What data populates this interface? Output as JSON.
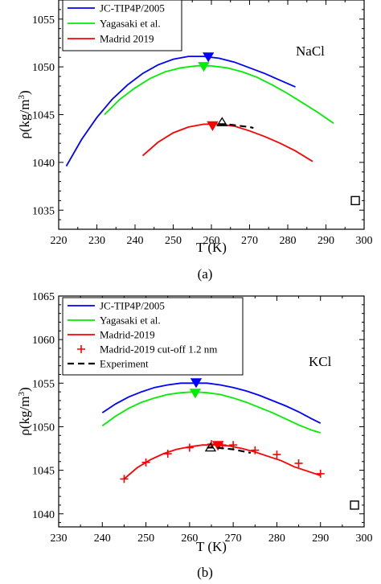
{
  "chart_data": [
    {
      "type": "line",
      "panel_label": "(a)",
      "annotation": "NaCl",
      "xlabel": "T (K)",
      "ylabel": "ρ(kg/m",
      "ylabel_sup": "3",
      "ylabel_close": ")",
      "xlim": [
        220,
        300
      ],
      "ylim": [
        1033,
        1057
      ],
      "xticks": [
        220,
        230,
        240,
        250,
        260,
        270,
        280,
        290,
        300
      ],
      "yticks": [
        1035,
        1040,
        1045,
        1050,
        1055
      ],
      "legend_position": "top-left",
      "series": [
        {
          "name": "JC-TIP4P/2005",
          "color": "#0000ff",
          "x": [
            222,
            226,
            230,
            234,
            238,
            242,
            246,
            250,
            254,
            258,
            262,
            266,
            270,
            274,
            278,
            282
          ],
          "y": [
            1039.6,
            1042.4,
            1044.7,
            1046.6,
            1048.1,
            1049.3,
            1050.2,
            1050.8,
            1051.1,
            1051.1,
            1050.9,
            1050.5,
            1049.9,
            1049.3,
            1048.6,
            1047.9
          ],
          "marker": {
            "shape": "triangle-down",
            "x": 259.2,
            "y": 1051.0
          }
        },
        {
          "name": "Yagasaki et al.",
          "color": "#00ee00",
          "x": [
            232,
            236,
            240,
            244,
            248,
            252,
            256,
            260,
            264,
            268,
            272,
            276,
            280,
            284,
            288,
            292
          ],
          "y": [
            1045.0,
            1046.6,
            1047.8,
            1048.8,
            1049.5,
            1049.9,
            1050.1,
            1050.1,
            1049.9,
            1049.5,
            1048.9,
            1048.1,
            1047.2,
            1046.2,
            1045.2,
            1044.1
          ],
          "marker": {
            "shape": "triangle-down",
            "x": 258.0,
            "y": 1050.0
          }
        },
        {
          "name": "Madrid 2019",
          "color": "#ff0000",
          "x": [
            242,
            246,
            250,
            254,
            258,
            262,
            266,
            270,
            274,
            278,
            282,
            286.5
          ],
          "y": [
            1040.7,
            1042.1,
            1043.1,
            1043.7,
            1044.0,
            1044.0,
            1043.8,
            1043.3,
            1042.7,
            1042.0,
            1041.2,
            1040.1
          ],
          "marker": {
            "shape": "triangle-down",
            "x": 260.3,
            "y": 1043.8
          }
        }
      ],
      "experiment": {
        "color": "#000000",
        "x": [
          262,
          264,
          266,
          268,
          270,
          271
        ],
        "y": [
          1044.0,
          1044.0,
          1043.9,
          1043.8,
          1043.7,
          1043.6
        ],
        "open_triangle": {
          "x": 262.8,
          "y": 1044.2
        }
      },
      "open_square": {
        "x": 297.7,
        "y": 1036.0
      }
    },
    {
      "type": "line",
      "panel_label": "(b)",
      "annotation": "KCl",
      "xlabel": "T (K)",
      "ylabel": "ρ(kg/m",
      "ylabel_sup": "3",
      "ylabel_close": ")",
      "xlim": [
        230,
        300
      ],
      "ylim": [
        1038.5,
        1065
      ],
      "xticks": [
        230,
        240,
        250,
        260,
        270,
        280,
        290,
        300
      ],
      "yticks": [
        1040,
        1045,
        1050,
        1055,
        1060,
        1065
      ],
      "legend_position": "top-left",
      "series": [
        {
          "name": "JC-TIP4P/2005",
          "color": "#0000ff",
          "x": [
            240,
            243,
            246,
            249,
            252,
            255,
            258,
            261,
            264,
            267,
            270,
            273,
            276,
            279,
            282,
            285,
            288,
            290
          ],
          "y": [
            1051.6,
            1052.6,
            1053.4,
            1054.0,
            1054.5,
            1054.8,
            1055.0,
            1055.0,
            1055.0,
            1054.8,
            1054.5,
            1054.1,
            1053.6,
            1053.0,
            1052.4,
            1051.7,
            1050.9,
            1050.4
          ],
          "marker": {
            "shape": "triangle-down",
            "x": 261.5,
            "y": 1055.0
          }
        },
        {
          "name": "Yagasaki et al.",
          "color": "#00ee00",
          "x": [
            240,
            243,
            246,
            249,
            252,
            255,
            258,
            261,
            264,
            267,
            270,
            273,
            276,
            279,
            282,
            285,
            288,
            290
          ],
          "y": [
            1050.1,
            1051.2,
            1052.1,
            1052.8,
            1053.3,
            1053.7,
            1053.9,
            1054.0,
            1053.9,
            1053.7,
            1053.3,
            1052.8,
            1052.2,
            1051.6,
            1050.9,
            1050.2,
            1049.6,
            1049.3
          ],
          "marker": {
            "shape": "triangle-down",
            "x": 261.3,
            "y": 1053.8
          }
        },
        {
          "name": "Madrid-2019",
          "color": "#ff0000",
          "x": [
            245,
            248,
            251,
            254,
            257,
            260,
            263,
            266,
            269,
            272,
            275,
            278,
            281,
            284,
            287,
            290
          ],
          "y": [
            1044.0,
            1045.3,
            1046.2,
            1046.9,
            1047.4,
            1047.7,
            1047.9,
            1047.9,
            1047.8,
            1047.5,
            1047.1,
            1046.6,
            1046.1,
            1045.4,
            1044.9,
            1044.4
          ],
          "marker": {
            "shape": "triangle-down",
            "x": 266.5,
            "y": 1047.8
          }
        },
        {
          "name": "Madrid-2019 cut-off 1.2 nm",
          "color": "#ff0000",
          "points_x": [
            245,
            250,
            255,
            260,
            265,
            267.5,
            270,
            275,
            280,
            285,
            290
          ],
          "points_y": [
            1044.0,
            1045.9,
            1046.9,
            1047.6,
            1048.0,
            1047.9,
            1047.9,
            1047.3,
            1046.8,
            1045.8,
            1044.6
          ]
        }
      ],
      "experiment": {
        "name": "Experiment",
        "color": "#000000",
        "x": [
          264,
          266,
          268,
          270,
          272,
          274
        ],
        "y": [
          1047.6,
          1047.6,
          1047.5,
          1047.4,
          1047.2,
          1047.0
        ],
        "open_triangle": {
          "x": 264.8,
          "y": 1047.6
        }
      },
      "open_square": {
        "x": 297.8,
        "y": 1041.0
      }
    }
  ]
}
